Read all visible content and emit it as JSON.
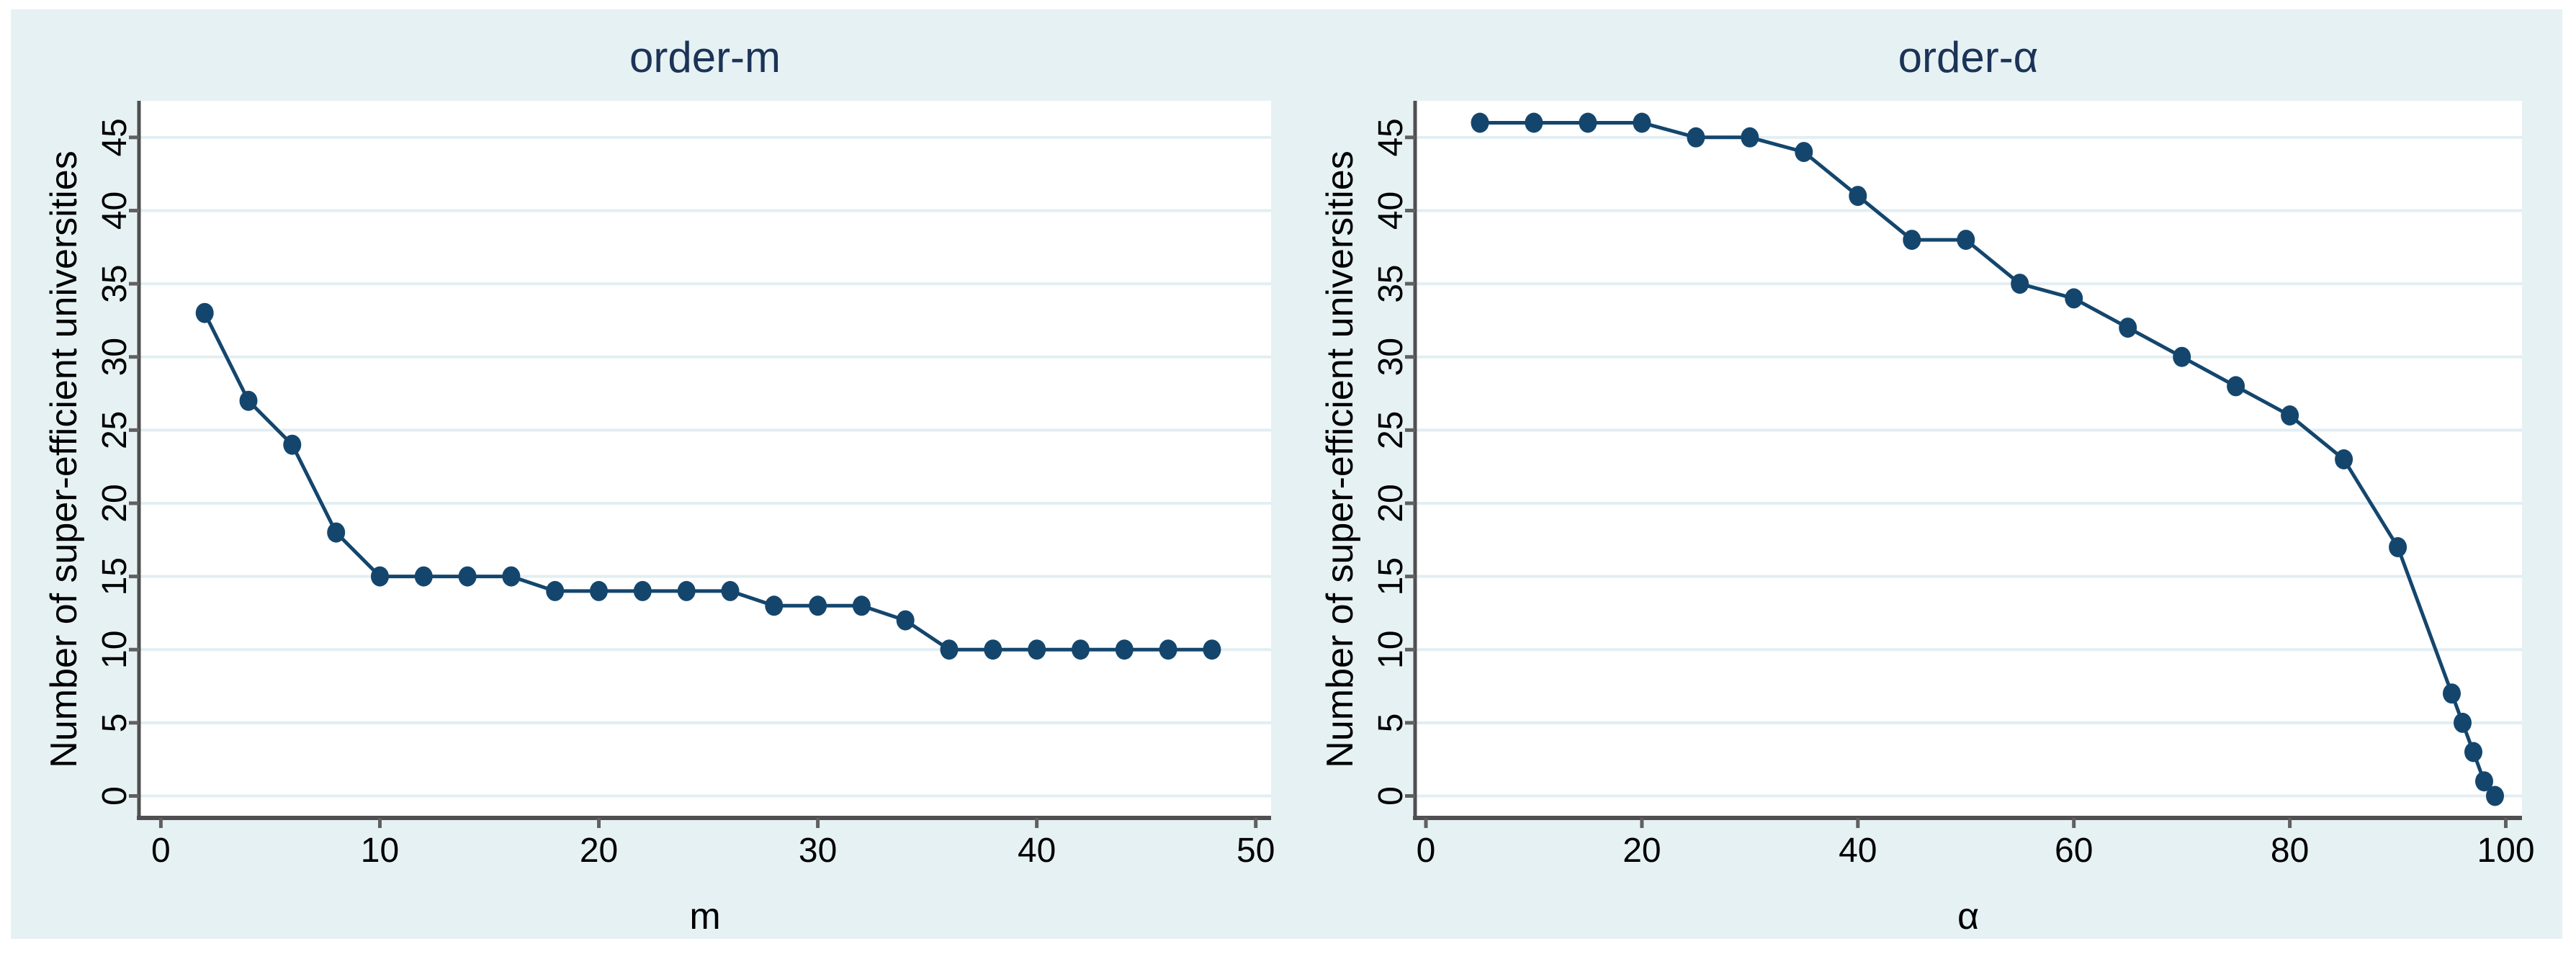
{
  "figure": {
    "background_color": "#ffffff",
    "panel_color": "#e6f1f3",
    "plot_background": "#ffffff",
    "gridline_color": "#e2eef2",
    "axis_color": "#4f4f4f",
    "tick_color": "#606060",
    "tick_label_color": "#000000",
    "axis_title_color": "#000000",
    "title_color": "#1b3356",
    "series_color": "#14466d"
  },
  "chart_data": [
    {
      "type": "line",
      "title": "order-m",
      "xlabel": "m",
      "ylabel": "Number of super-efficient universities",
      "x": [
        2,
        4,
        6,
        8,
        10,
        12,
        14,
        16,
        18,
        20,
        22,
        24,
        26,
        28,
        30,
        32,
        34,
        36,
        38,
        40,
        42,
        44,
        46,
        48
      ],
      "y": [
        33,
        27,
        24,
        18,
        15,
        15,
        15,
        15,
        14,
        14,
        14,
        14,
        14,
        13,
        13,
        13,
        12,
        10,
        10,
        10,
        10,
        10,
        10,
        10
      ],
      "xticks": [
        0,
        10,
        20,
        30,
        40,
        50
      ],
      "yticks": [
        0,
        5,
        10,
        15,
        20,
        25,
        30,
        35,
        40,
        45
      ],
      "xlim": [
        -1,
        50.7
      ],
      "ylim": [
        -1.5,
        47.5
      ],
      "grid": true,
      "legend": "none",
      "marker": "circle"
    },
    {
      "type": "line",
      "title": "order-α",
      "xlabel": "α",
      "ylabel": "Number of super-efficient universities",
      "x": [
        5,
        10,
        15,
        20,
        25,
        30,
        35,
        40,
        45,
        50,
        55,
        60,
        65,
        70,
        75,
        80,
        85,
        90,
        95,
        96,
        97,
        98,
        99
      ],
      "y": [
        46,
        46,
        46,
        46,
        45,
        45,
        44,
        41,
        38,
        38,
        35,
        34,
        32,
        30,
        28,
        26,
        23,
        17,
        7,
        5,
        3,
        1,
        0
      ],
      "xticks": [
        0,
        20,
        40,
        60,
        80,
        100
      ],
      "yticks": [
        0,
        5,
        10,
        15,
        20,
        25,
        30,
        35,
        40,
        45
      ],
      "xlim": [
        -1,
        101.5
      ],
      "ylim": [
        -1.5,
        47.5
      ],
      "grid": true,
      "legend": "none",
      "marker": "circle"
    }
  ]
}
